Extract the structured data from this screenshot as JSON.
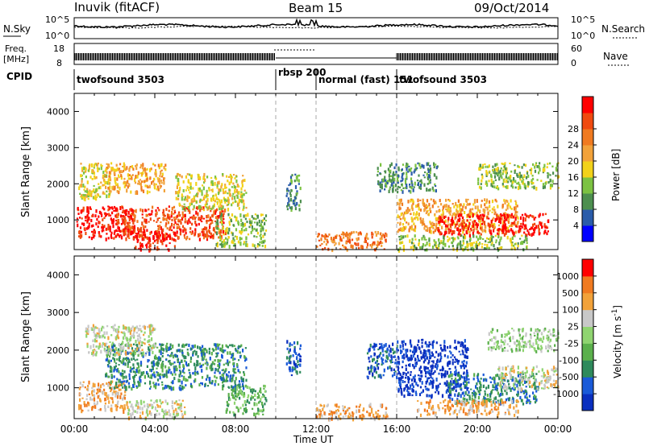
{
  "header": {
    "station": "Inuvik (fitACF)",
    "beam": "Beam 15",
    "date": "09/Oct/2014"
  },
  "sky_panel": {
    "left_label": "N.Sky",
    "right_label": "N.Search",
    "left_ticks": [
      "10^5",
      "10^0"
    ],
    "right_ticks": [
      "10^5",
      "10^0"
    ]
  },
  "freq_panel": {
    "left_label_1": "Freq.",
    "left_label_2": "[MHz]",
    "right_label": "Nave",
    "left_ticks": [
      "18",
      "8"
    ],
    "right_ticks": [
      "60",
      "0"
    ]
  },
  "cpid": {
    "label": "CPID",
    "segments": [
      {
        "name": "twofsound 3503",
        "start_h": 0,
        "end_h": 10
      },
      {
        "name": "rbsp 200",
        "start_h": 10,
        "end_h": 12
      },
      {
        "name": "normal (fast) 151",
        "start_h": 12,
        "end_h": 16
      },
      {
        "name": "twofsound 3503",
        "start_h": 16,
        "end_h": 24
      }
    ]
  },
  "time_axis": {
    "label": "Time UT",
    "ticks": [
      "00:00",
      "04:00",
      "08:00",
      "12:00",
      "16:00",
      "20:00",
      "00:00"
    ]
  },
  "chart_data": [
    {
      "type": "heatmap",
      "name": "power",
      "ylabel": "Slant Range [km]",
      "y_ticks": [
        1000,
        2000,
        3000,
        4000
      ],
      "ylim": [
        180,
        4500
      ],
      "xlim_hours": [
        0,
        24
      ],
      "colorbar": {
        "label": "Power [dB]",
        "ticks": [
          "4",
          "8",
          "12",
          "16",
          "20",
          "24",
          "28"
        ],
        "colors": [
          "#0000ff",
          "#2a5caa",
          "#4d8f4f",
          "#7cc242",
          "#f2d21a",
          "#f2a23a",
          "#f07a20",
          "#f04a10",
          "#ff0000"
        ]
      },
      "regions": [
        {
          "t": [
            0.1,
            3.0
          ],
          "r": [
            500,
            1400
          ],
          "level": 8
        },
        {
          "t": [
            2.0,
            7.5
          ],
          "r": [
            500,
            1400
          ],
          "level": 7
        },
        {
          "t": [
            0.2,
            1.8
          ],
          "r": [
            1600,
            2600
          ],
          "level": 4
        },
        {
          "t": [
            1.5,
            4.5
          ],
          "r": [
            1800,
            2600
          ],
          "level": 5
        },
        {
          "t": [
            5.0,
            8.5
          ],
          "r": [
            1300,
            2300
          ],
          "level": 4
        },
        {
          "t": [
            3.0,
            5.0
          ],
          "r": [
            200,
            700
          ],
          "level": 8
        },
        {
          "t": [
            7.0,
            9.5
          ],
          "r": [
            300,
            1200
          ],
          "level": 3
        },
        {
          "t": [
            10.5,
            11.2
          ],
          "r": [
            1300,
            2300
          ],
          "level": 2
        },
        {
          "t": [
            12.0,
            15.5
          ],
          "r": [
            200,
            700
          ],
          "level": 6
        },
        {
          "t": [
            16.0,
            22.0
          ],
          "r": [
            700,
            1600
          ],
          "level": 5
        },
        {
          "t": [
            18.0,
            23.5
          ],
          "r": [
            600,
            1200
          ],
          "level": 8
        },
        {
          "t": [
            20.0,
            24.0
          ],
          "r": [
            1900,
            2600
          ],
          "level": 3
        },
        {
          "t": [
            15.0,
            18.0
          ],
          "r": [
            1800,
            2600
          ],
          "level": 2
        },
        {
          "t": [
            16.0,
            22.5
          ],
          "r": [
            200,
            600
          ],
          "level": 3
        }
      ]
    },
    {
      "type": "heatmap",
      "name": "velocity",
      "ylabel": "Slant Range [km]",
      "y_ticks": [
        1000,
        2000,
        3000,
        4000
      ],
      "ylim": [
        180,
        4500
      ],
      "xlim_hours": [
        0,
        24
      ],
      "colorbar": {
        "label": "Velocity [m s^-1]",
        "ticks": [
          "1000",
          "500",
          "100",
          "25",
          "-25",
          "-100",
          "-500",
          "-1000"
        ],
        "colors": [
          "#0a2fbf",
          "#1a5ad8",
          "#2e8a5c",
          "#5bb04c",
          "#8fd470",
          "#c8c8c8",
          "#f2a23a",
          "#f07a20",
          "#ff0000"
        ]
      },
      "regions": [
        {
          "t": [
            0.2,
            2.5
          ],
          "r": [
            400,
            1200
          ],
          "level": 6
        },
        {
          "t": [
            1.5,
            8.5
          ],
          "r": [
            1000,
            2200
          ],
          "level": 2
        },
        {
          "t": [
            0.5,
            4.0
          ],
          "r": [
            1900,
            2700
          ],
          "level": 5
        },
        {
          "t": [
            2.5,
            5.5
          ],
          "r": [
            200,
            700
          ],
          "level": 5
        },
        {
          "t": [
            7.5,
            9.5
          ],
          "r": [
            300,
            1100
          ],
          "level": 3
        },
        {
          "t": [
            10.5,
            11.2
          ],
          "r": [
            1300,
            2300
          ],
          "level": 1
        },
        {
          "t": [
            12.0,
            15.5
          ],
          "r": [
            200,
            600
          ],
          "level": 6
        },
        {
          "t": [
            14.5,
            16.0
          ],
          "r": [
            1300,
            2200
          ],
          "level": 1
        },
        {
          "t": [
            16.0,
            19.5
          ],
          "r": [
            800,
            2300
          ],
          "level": 0
        },
        {
          "t": [
            18.5,
            23.0
          ],
          "r": [
            600,
            1400
          ],
          "level": 2
        },
        {
          "t": [
            17.0,
            22.0
          ],
          "r": [
            300,
            700
          ],
          "level": 6
        },
        {
          "t": [
            21.0,
            24.0
          ],
          "r": [
            1000,
            1600
          ],
          "level": 5
        },
        {
          "t": [
            20.5,
            24.0
          ],
          "r": [
            2000,
            2600
          ],
          "level": 4
        }
      ]
    }
  ]
}
